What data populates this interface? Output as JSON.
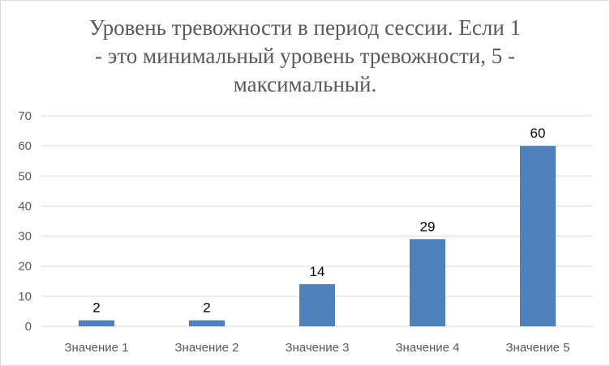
{
  "chart_data": {
    "type": "bar",
    "title": "Уровень тревожности в период сессии. Если 1 - это минимальный уровень тревожности, 5 - максимальный.",
    "title_lines": [
      "Уровень тревожности в период сессии. Если 1",
      "- это минимальный уровень тревожности, 5 -",
      "максимальный."
    ],
    "categories": [
      "Значение 1",
      "Значение 2",
      "Значение 3",
      "Значение 4",
      "Значение 5"
    ],
    "values": [
      2,
      2,
      14,
      29,
      60
    ],
    "data_labels": [
      "2",
      "2",
      "14",
      "29",
      "60"
    ],
    "y_ticks": [
      0,
      10,
      20,
      30,
      40,
      50,
      60,
      70
    ],
    "ylim": [
      0,
      70
    ],
    "xlabel": "",
    "ylabel": "",
    "grid": true,
    "legend": "none",
    "colors": {
      "bar": "#4f81bd",
      "grid": "#d9d9d9",
      "axis_text": "#595959",
      "title_text": "#595959",
      "data_label_text": "#000000"
    }
  }
}
